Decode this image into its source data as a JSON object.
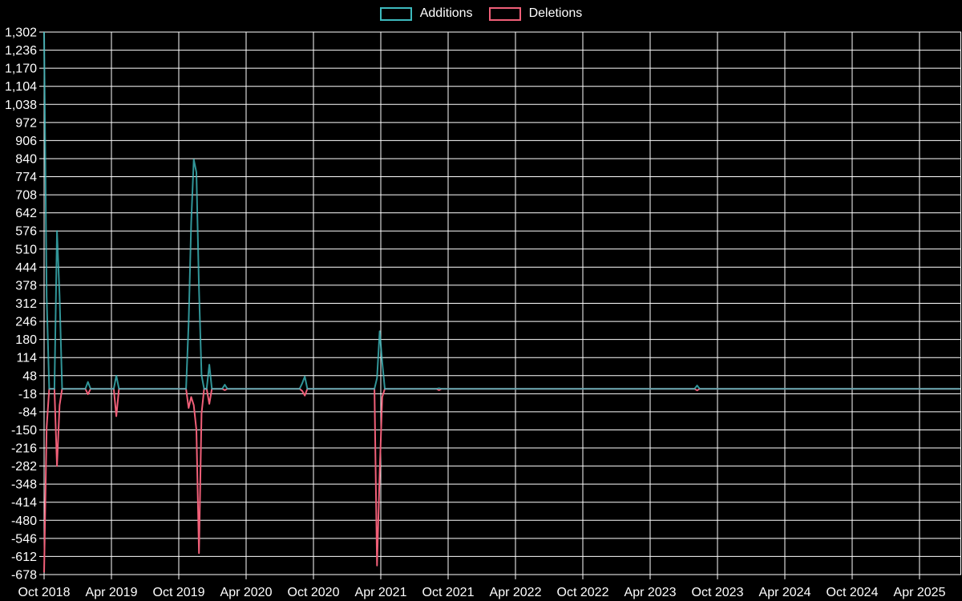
{
  "legend": {
    "items": [
      {
        "label": "Additions",
        "color": "#3dbabe"
      },
      {
        "label": "Deletions",
        "color": "#f05f78"
      }
    ]
  },
  "chart_data": {
    "type": "line",
    "title": "",
    "xlabel": "",
    "ylabel": "",
    "grid": true,
    "legend_position": "top-center",
    "background_color": "#000000",
    "grid_color": "#ffffff",
    "text_color": "#ffffff",
    "series": [
      {
        "name": "Additions",
        "color": "#3dbabe",
        "key": "additions"
      },
      {
        "name": "Deletions",
        "color": "#f05f78",
        "key": "deletions"
      }
    ],
    "y_axis": {
      "min": -678,
      "max": 1302,
      "step": 66,
      "tick_labels": [
        "1,302",
        "1,236",
        "1,170",
        "1,104",
        "1,038",
        "972",
        "906",
        "840",
        "774",
        "708",
        "642",
        "576",
        "510",
        "444",
        "378",
        "312",
        "246",
        "180",
        "114",
        "48",
        "-18",
        "-84",
        "-150",
        "-216",
        "-282",
        "-348",
        "-414",
        "-480",
        "-546",
        "-612",
        "-678"
      ]
    },
    "x_axis": {
      "tick_labels": [
        "Oct 2018",
        "Apr 2019",
        "Oct 2019",
        "Apr 2020",
        "Oct 2020",
        "Apr 2021",
        "Oct 2021",
        "Apr 2022",
        "Oct 2022",
        "Apr 2023",
        "Oct 2023",
        "Apr 2024",
        "Oct 2024",
        "Apr 2025"
      ],
      "weeks_between_ticks": 26.09,
      "weeks_total": 356
    },
    "note": "Weekly additions/deletions series; weeks not listed below are zero for both series.",
    "data_points": [
      {
        "week": 0,
        "additions": 1302,
        "deletions": -670
      },
      {
        "week": 1,
        "additions": 337,
        "deletions": -140
      },
      {
        "week": 5,
        "additions": 576,
        "deletions": -282
      },
      {
        "week": 6,
        "additions": 340,
        "deletions": -60
      },
      {
        "week": 17,
        "additions": 25,
        "deletions": -20
      },
      {
        "week": 28,
        "additions": 48,
        "deletions": -100
      },
      {
        "week": 56,
        "additions": 240,
        "deletions": -70
      },
      {
        "week": 57,
        "additions": 606,
        "deletions": -30
      },
      {
        "week": 58,
        "additions": 837,
        "deletions": -60
      },
      {
        "week": 59,
        "additions": 790,
        "deletions": -150
      },
      {
        "week": 60,
        "additions": 366,
        "deletions": -600
      },
      {
        "week": 61,
        "additions": 50,
        "deletions": -90
      },
      {
        "week": 64,
        "additions": 88,
        "deletions": -55
      },
      {
        "week": 70,
        "additions": 15,
        "deletions": -5
      },
      {
        "week": 100,
        "additions": 20,
        "deletions": -8
      },
      {
        "week": 101,
        "additions": 45,
        "deletions": -25
      },
      {
        "week": 129,
        "additions": 39,
        "deletions": -645
      },
      {
        "week": 130,
        "additions": 210,
        "deletions": -307
      },
      {
        "week": 131,
        "additions": 97,
        "deletions": -30
      },
      {
        "week": 153,
        "additions": 2,
        "deletions": -5
      },
      {
        "week": 253,
        "additions": 12,
        "deletions": -6
      }
    ]
  }
}
